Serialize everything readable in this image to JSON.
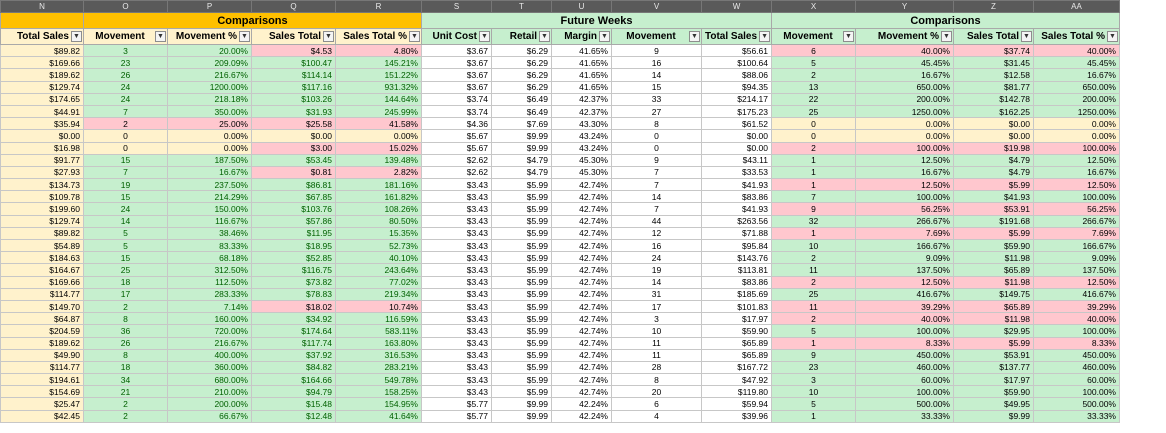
{
  "columns": [
    "N",
    "O",
    "P",
    "Q",
    "R",
    "S",
    "T",
    "U",
    "V",
    "W",
    "X",
    "Y",
    "Z",
    "AA"
  ],
  "groups": [
    {
      "label": "",
      "span": 1,
      "style": "grp-y"
    },
    {
      "label": "Comparisons",
      "span": 4,
      "style": "grp-y"
    },
    {
      "label": "Future Weeks",
      "span": 5,
      "style": "grp-g"
    },
    {
      "label": "Comparisons",
      "span": 4,
      "style": "grp-g"
    }
  ],
  "headers": [
    "Total Sales",
    "Movement",
    "Movement %",
    "Sales Total",
    "Sales Total %",
    "Unit Cost",
    "Retail",
    "Margin",
    "Movement",
    "Total Sales",
    "Movement",
    "Movement %",
    "Sales Total",
    "Sales Total %"
  ],
  "rows": [
    [
      "$89.82",
      "3",
      "20.00%",
      "$4.53",
      "4.80%",
      "$3.67",
      "$6.29",
      "41.65%",
      "9",
      "$56.61",
      "6",
      "40.00%",
      "$37.74",
      "40.00%"
    ],
    [
      "$169.66",
      "23",
      "209.09%",
      "$100.47",
      "145.21%",
      "$3.67",
      "$6.29",
      "41.65%",
      "16",
      "$100.64",
      "5",
      "45.45%",
      "$31.45",
      "45.45%"
    ],
    [
      "$189.62",
      "26",
      "216.67%",
      "$114.14",
      "151.22%",
      "$3.67",
      "$6.29",
      "41.65%",
      "14",
      "$88.06",
      "2",
      "16.67%",
      "$12.58",
      "16.67%"
    ],
    [
      "$129.74",
      "24",
      "1200.00%",
      "$117.16",
      "931.32%",
      "$3.67",
      "$6.29",
      "41.65%",
      "15",
      "$94.35",
      "13",
      "650.00%",
      "$81.77",
      "650.00%"
    ],
    [
      "$174.65",
      "24",
      "218.18%",
      "$103.26",
      "144.64%",
      "$3.74",
      "$6.49",
      "42.37%",
      "33",
      "$214.17",
      "22",
      "200.00%",
      "$142.78",
      "200.00%"
    ],
    [
      "$44.91",
      "7",
      "350.00%",
      "$31.93",
      "245.99%",
      "$3.74",
      "$6.49",
      "42.37%",
      "27",
      "$175.23",
      "25",
      "1250.00%",
      "$162.25",
      "1250.00%"
    ],
    [
      "$35.94",
      "2",
      "25.00%",
      "$25.58",
      "41.58%",
      "$4.36",
      "$7.69",
      "43.30%",
      "8",
      "$61.52",
      "0",
      "0.00%",
      "$0.00",
      "0.00%"
    ],
    [
      "$0.00",
      "0",
      "0.00%",
      "$0.00",
      "0.00%",
      "$5.67",
      "$9.99",
      "43.24%",
      "0",
      "$0.00",
      "0",
      "0.00%",
      "$0.00",
      "0.00%"
    ],
    [
      "$16.98",
      "0",
      "0.00%",
      "$3.00",
      "15.02%",
      "$5.67",
      "$9.99",
      "43.24%",
      "0",
      "$0.00",
      "2",
      "100.00%",
      "$19.98",
      "100.00%"
    ],
    [
      "$91.77",
      "15",
      "187.50%",
      "$53.45",
      "139.48%",
      "$2.62",
      "$4.79",
      "45.30%",
      "9",
      "$43.11",
      "1",
      "12.50%",
      "$4.79",
      "12.50%"
    ],
    [
      "$27.93",
      "7",
      "16.67%",
      "$0.81",
      "2.82%",
      "$2.62",
      "$4.79",
      "45.30%",
      "7",
      "$33.53",
      "1",
      "16.67%",
      "$4.79",
      "16.67%"
    ],
    [
      "$134.73",
      "19",
      "237.50%",
      "$86.81",
      "181.16%",
      "$3.43",
      "$5.99",
      "42.74%",
      "7",
      "$41.93",
      "1",
      "12.50%",
      "$5.99",
      "12.50%"
    ],
    [
      "$109.78",
      "15",
      "214.29%",
      "$67.85",
      "161.82%",
      "$3.43",
      "$5.99",
      "42.74%",
      "14",
      "$83.86",
      "7",
      "100.00%",
      "$41.93",
      "100.00%"
    ],
    [
      "$199.60",
      "24",
      "150.00%",
      "$103.76",
      "108.26%",
      "$3.43",
      "$5.99",
      "42.74%",
      "7",
      "$41.93",
      "9",
      "56.25%",
      "$53.91",
      "56.25%"
    ],
    [
      "$129.74",
      "14",
      "116.67%",
      "$57.86",
      "80.50%",
      "$3.43",
      "$5.99",
      "42.74%",
      "44",
      "$263.56",
      "32",
      "266.67%",
      "$191.68",
      "266.67%"
    ],
    [
      "$89.82",
      "5",
      "38.46%",
      "$11.95",
      "15.35%",
      "$3.43",
      "$5.99",
      "42.74%",
      "12",
      "$71.88",
      "1",
      "7.69%",
      "$5.99",
      "7.69%"
    ],
    [
      "$54.89",
      "5",
      "83.33%",
      "$18.95",
      "52.73%",
      "$3.43",
      "$5.99",
      "42.74%",
      "16",
      "$95.84",
      "10",
      "166.67%",
      "$59.90",
      "166.67%"
    ],
    [
      "$184.63",
      "15",
      "68.18%",
      "$52.85",
      "40.10%",
      "$3.43",
      "$5.99",
      "42.74%",
      "24",
      "$143.76",
      "2",
      "9.09%",
      "$11.98",
      "9.09%"
    ],
    [
      "$164.67",
      "25",
      "312.50%",
      "$116.75",
      "243.64%",
      "$3.43",
      "$5.99",
      "42.74%",
      "19",
      "$113.81",
      "11",
      "137.50%",
      "$65.89",
      "137.50%"
    ],
    [
      "$169.66",
      "18",
      "112.50%",
      "$73.82",
      "77.02%",
      "$3.43",
      "$5.99",
      "42.74%",
      "14",
      "$83.86",
      "2",
      "12.50%",
      "$11.98",
      "12.50%"
    ],
    [
      "$114.77",
      "17",
      "283.33%",
      "$78.83",
      "219.34%",
      "$3.43",
      "$5.99",
      "42.74%",
      "31",
      "$185.69",
      "25",
      "416.67%",
      "$149.75",
      "416.67%"
    ],
    [
      "$149.70",
      "2",
      "7.14%",
      "$18.02",
      "10.74%",
      "$3.43",
      "$5.99",
      "42.74%",
      "17",
      "$101.83",
      "11",
      "39.29%",
      "$65.89",
      "39.29%"
    ],
    [
      "$64.87",
      "8",
      "160.00%",
      "$34.92",
      "116.59%",
      "$3.43",
      "$5.99",
      "42.74%",
      "3",
      "$17.97",
      "2",
      "40.00%",
      "$11.98",
      "40.00%"
    ],
    [
      "$204.59",
      "36",
      "720.00%",
      "$174.64",
      "583.11%",
      "$3.43",
      "$5.99",
      "42.74%",
      "10",
      "$59.90",
      "5",
      "100.00%",
      "$29.95",
      "100.00%"
    ],
    [
      "$189.62",
      "26",
      "216.67%",
      "$117.74",
      "163.80%",
      "$3.43",
      "$5.99",
      "42.74%",
      "11",
      "$65.89",
      "1",
      "8.33%",
      "$5.99",
      "8.33%"
    ],
    [
      "$49.90",
      "8",
      "400.00%",
      "$37.92",
      "316.53%",
      "$3.43",
      "$5.99",
      "42.74%",
      "11",
      "$65.89",
      "9",
      "450.00%",
      "$53.91",
      "450.00%"
    ],
    [
      "$114.77",
      "18",
      "360.00%",
      "$84.82",
      "283.21%",
      "$3.43",
      "$5.99",
      "42.74%",
      "28",
      "$167.72",
      "23",
      "460.00%",
      "$137.77",
      "460.00%"
    ],
    [
      "$194.61",
      "34",
      "680.00%",
      "$164.66",
      "549.78%",
      "$3.43",
      "$5.99",
      "42.74%",
      "8",
      "$47.92",
      "3",
      "60.00%",
      "$17.97",
      "60.00%"
    ],
    [
      "$154.69",
      "21",
      "210.00%",
      "$94.79",
      "158.25%",
      "$3.43",
      "$5.99",
      "42.74%",
      "20",
      "$119.80",
      "10",
      "100.00%",
      "$59.90",
      "100.00%"
    ],
    [
      "$25.47",
      "2",
      "200.00%",
      "$15.48",
      "154.95%",
      "$5.77",
      "$9.99",
      "42.24%",
      "6",
      "$59.94",
      "5",
      "500.00%",
      "$49.95",
      "500.00%"
    ],
    [
      "$42.45",
      "2",
      "66.67%",
      "$12.48",
      "41.64%",
      "$5.77",
      "$9.99",
      "42.24%",
      "4",
      "$39.96",
      "1",
      "33.33%",
      "$9.99",
      "33.33%"
    ]
  ],
  "styles": [
    [
      "y",
      "g",
      "g",
      "r",
      "r",
      "w",
      "w",
      "w",
      "w",
      "w",
      "r",
      "r",
      "r",
      "r"
    ],
    [
      "y",
      "g",
      "g",
      "g",
      "g",
      "w",
      "w",
      "w",
      "w",
      "w",
      "g",
      "g",
      "g",
      "g"
    ],
    [
      "y",
      "g",
      "g",
      "g",
      "g",
      "w",
      "w",
      "w",
      "w",
      "w",
      "g",
      "g",
      "g",
      "g"
    ],
    [
      "y",
      "g",
      "g",
      "g",
      "g",
      "w",
      "w",
      "w",
      "w",
      "w",
      "g",
      "g",
      "g",
      "g"
    ],
    [
      "y",
      "g",
      "g",
      "g",
      "g",
      "w",
      "w",
      "w",
      "w",
      "w",
      "g",
      "g",
      "g",
      "g"
    ],
    [
      "y",
      "g",
      "g",
      "g",
      "g",
      "w",
      "w",
      "w",
      "w",
      "w",
      "g",
      "g",
      "g",
      "g"
    ],
    [
      "y",
      "r",
      "r",
      "r",
      "r",
      "w",
      "w",
      "w",
      "w",
      "w",
      "y",
      "y",
      "y",
      "y"
    ],
    [
      "y",
      "y",
      "y",
      "y",
      "y",
      "w",
      "w",
      "w",
      "w",
      "w",
      "y",
      "y",
      "y",
      "y"
    ],
    [
      "y",
      "y",
      "y",
      "r",
      "r",
      "w",
      "w",
      "w",
      "w",
      "w",
      "r",
      "r",
      "r",
      "r"
    ],
    [
      "y",
      "g",
      "g",
      "g",
      "g",
      "w",
      "w",
      "w",
      "w",
      "w",
      "g",
      "g",
      "g",
      "g"
    ],
    [
      "y",
      "g",
      "g",
      "r",
      "r",
      "w",
      "w",
      "w",
      "w",
      "w",
      "g",
      "g",
      "g",
      "g"
    ],
    [
      "y",
      "g",
      "g",
      "g",
      "g",
      "w",
      "w",
      "w",
      "w",
      "w",
      "r",
      "r",
      "r",
      "r"
    ],
    [
      "y",
      "g",
      "g",
      "g",
      "g",
      "w",
      "w",
      "w",
      "w",
      "w",
      "g",
      "g",
      "g",
      "g"
    ],
    [
      "y",
      "g",
      "g",
      "g",
      "g",
      "w",
      "w",
      "w",
      "w",
      "w",
      "r",
      "r",
      "r",
      "r"
    ],
    [
      "y",
      "g",
      "g",
      "g",
      "g",
      "w",
      "w",
      "w",
      "w",
      "w",
      "g",
      "g",
      "g",
      "g"
    ],
    [
      "y",
      "g",
      "g",
      "g",
      "g",
      "w",
      "w",
      "w",
      "w",
      "w",
      "r",
      "r",
      "r",
      "r"
    ],
    [
      "y",
      "g",
      "g",
      "g",
      "g",
      "w",
      "w",
      "w",
      "w",
      "w",
      "g",
      "g",
      "g",
      "g"
    ],
    [
      "y",
      "g",
      "g",
      "g",
      "g",
      "w",
      "w",
      "w",
      "w",
      "w",
      "g",
      "g",
      "g",
      "g"
    ],
    [
      "y",
      "g",
      "g",
      "g",
      "g",
      "w",
      "w",
      "w",
      "w",
      "w",
      "g",
      "g",
      "g",
      "g"
    ],
    [
      "y",
      "g",
      "g",
      "g",
      "g",
      "w",
      "w",
      "w",
      "w",
      "w",
      "r",
      "r",
      "r",
      "r"
    ],
    [
      "y",
      "g",
      "g",
      "g",
      "g",
      "w",
      "w",
      "w",
      "w",
      "w",
      "g",
      "g",
      "g",
      "g"
    ],
    [
      "y",
      "g",
      "g",
      "r",
      "r",
      "w",
      "w",
      "w",
      "w",
      "w",
      "r",
      "r",
      "r",
      "r"
    ],
    [
      "y",
      "g",
      "g",
      "g",
      "g",
      "w",
      "w",
      "w",
      "w",
      "w",
      "r",
      "r",
      "r",
      "r"
    ],
    [
      "y",
      "g",
      "g",
      "g",
      "g",
      "w",
      "w",
      "w",
      "w",
      "w",
      "g",
      "g",
      "g",
      "g"
    ],
    [
      "y",
      "g",
      "g",
      "g",
      "g",
      "w",
      "w",
      "w",
      "w",
      "w",
      "r",
      "r",
      "r",
      "r"
    ],
    [
      "y",
      "g",
      "g",
      "g",
      "g",
      "w",
      "w",
      "w",
      "w",
      "w",
      "g",
      "g",
      "g",
      "g"
    ],
    [
      "y",
      "g",
      "g",
      "g",
      "g",
      "w",
      "w",
      "w",
      "w",
      "w",
      "g",
      "g",
      "g",
      "g"
    ],
    [
      "y",
      "g",
      "g",
      "g",
      "g",
      "w",
      "w",
      "w",
      "w",
      "w",
      "g",
      "g",
      "g",
      "g"
    ],
    [
      "y",
      "g",
      "g",
      "g",
      "g",
      "w",
      "w",
      "w",
      "w",
      "w",
      "g",
      "g",
      "g",
      "g"
    ],
    [
      "y",
      "g",
      "g",
      "g",
      "g",
      "w",
      "w",
      "w",
      "w",
      "w",
      "g",
      "g",
      "g",
      "g"
    ],
    [
      "y",
      "g",
      "g",
      "g",
      "g",
      "w",
      "w",
      "w",
      "w",
      "w",
      "g",
      "g",
      "g",
      "g"
    ]
  ],
  "icons": {
    "filter_dropdown": "filter-dropdown-icon"
  },
  "colors": {
    "header_bar": "#5a5a5a",
    "yellow_fill": "#fff2cc",
    "green_fill": "#c6efce",
    "red_fill": "#ffc7ce",
    "red_text": "#9c0006",
    "group_yellow": "#ffc000"
  }
}
